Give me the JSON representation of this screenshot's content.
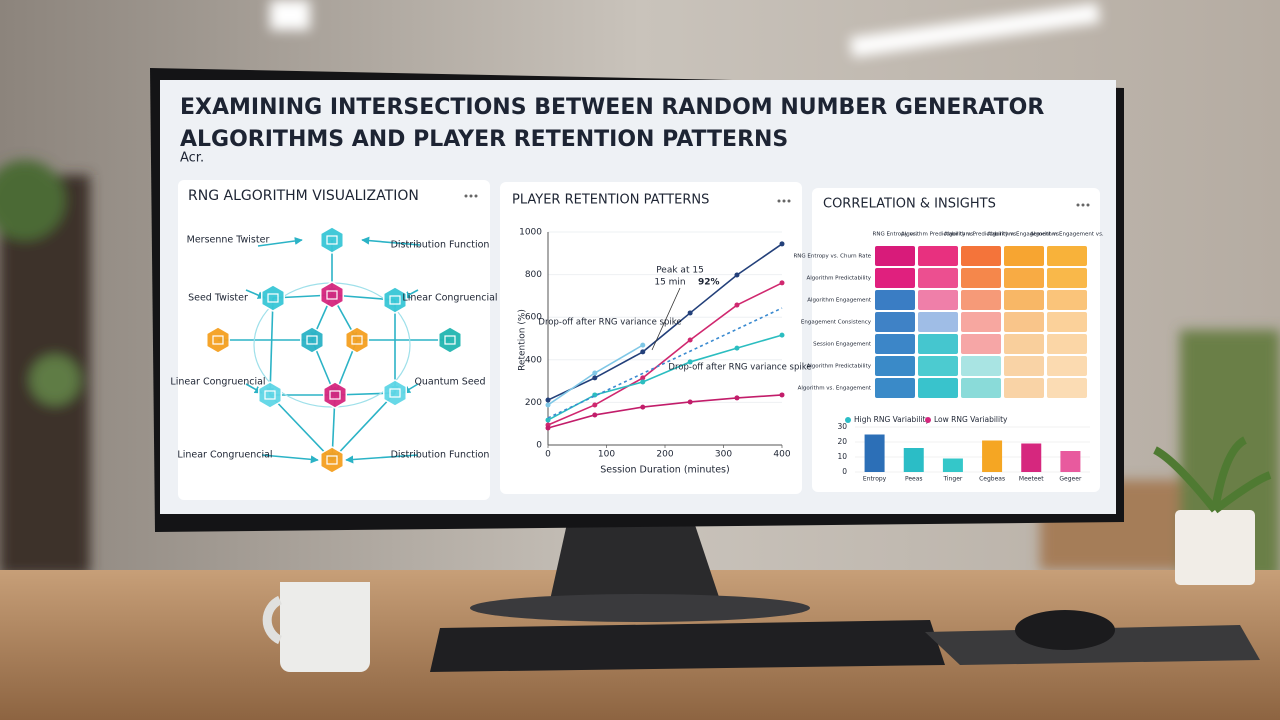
{
  "header": {
    "title_line1": "EXAMINING INTERSECTIONS BETWEEN RANDOM NUMBER GENERATOR",
    "title_line2": "ALGORITHMS AND PLAYER RETENTION PATTERNS",
    "subtitle": "Acr."
  },
  "panels": {
    "diagram_title": "RNG ALGORITHM VISUALIZATION",
    "retention_title": "PLAYER RETENTION PATTERNS",
    "insights_title": "CORRELATION & INSIGHTS"
  },
  "diagram": {
    "labels": [
      "Mersenne Twister",
      "Distribution Function",
      "Seed Twister",
      "Linear Congruencial",
      "Linear Congruencial",
      "Quantum Seed",
      "Linear Congruencial",
      "Distribution Function"
    ]
  },
  "heatmap": {
    "columns": [
      "RNG Entropy vs.",
      "Algorithm Predictability vs.",
      "Algorithm Predictability vs.",
      "Algorithm Engagement vs.",
      "Algorithm Engagement vs."
    ],
    "rows": [
      "RNG Entropy vs. Churn Rate",
      "Algorithm Predictability",
      "Algorithm Engagement",
      "Engagement Consistency",
      "Session Engagement",
      "Algorithm Predictability",
      "Algorithm vs. Engagement"
    ],
    "cell_colors": [
      [
        "#d81b7a",
        "#e8307f",
        "#f4743a",
        "#f7a531",
        "#f8b23a"
      ],
      [
        "#e0207e",
        "#ec4f90",
        "#f5874b",
        "#f8ab44",
        "#f9b84a"
      ],
      [
        "#3a7dc4",
        "#ef7fa9",
        "#f69a78",
        "#f8b766",
        "#fac47a"
      ],
      [
        "#3f82c6",
        "#9fbde6",
        "#f7a7a0",
        "#f9c58a",
        "#fbd19a"
      ],
      [
        "#3c86c8",
        "#45c6cf",
        "#f6a6a6",
        "#f9cf9c",
        "#fbd6a6"
      ],
      [
        "#3a8ac8",
        "#4ccbd0",
        "#a9e4e3",
        "#f9d3a6",
        "#fbdab0"
      ],
      [
        "#3a8ac8",
        "#39c3cc",
        "#8adbd9",
        "#f9d3a6",
        "#fbdcb4"
      ]
    ]
  },
  "chart_data": [
    {
      "type": "line",
      "xlabel": "Session Duration (minutes)",
      "ylabel": "Retention (%)",
      "xlim": [
        0,
        400
      ],
      "xticks": [
        0,
        100,
        200,
        300,
        400
      ],
      "ylim": [
        0,
        1000
      ],
      "yticks": [
        0,
        200,
        400,
        600,
        800,
        1000
      ],
      "series": [
        {
          "color": "#23407a",
          "x": [
            0,
            80,
            162,
            243,
            323,
            400
          ],
          "values": [
            211,
            315,
            437,
            620,
            798,
            944
          ]
        },
        {
          "color": "#d0286f",
          "x": [
            0,
            80,
            162,
            243,
            323,
            400
          ],
          "values": [
            94,
            188,
            315,
            493,
            657,
            761
          ]
        },
        {
          "color": "#2bbdc0",
          "x": [
            0,
            80,
            162,
            243,
            323,
            400
          ],
          "values": [
            117,
            235,
            296,
            390,
            455,
            516
          ]
        },
        {
          "color": "#c21d6a",
          "x": [
            0,
            80,
            162,
            243,
            323,
            400
          ],
          "values": [
            80,
            141,
            178,
            202,
            221,
            235
          ]
        },
        {
          "color": "#7fc7e6",
          "x": [
            0,
            80,
            162
          ],
          "values": [
            188,
            338,
            469
          ]
        },
        {
          "color": "#3a8ad0",
          "dashed": true,
          "x": [
            0,
            400
          ],
          "values": [
            127,
            643
          ]
        }
      ],
      "annotations": {
        "peak_line1": "Peak at 15",
        "peak_line2": "15 min",
        "peak_value": "92%",
        "dropoff_left": "Drop-off after RNG variance spike",
        "dropoff_right": "Drop-off after RNG variance spike"
      }
    },
    {
      "type": "bar",
      "categories": [
        "Entropy",
        "Peeas",
        "Tinger",
        "Cegbeas",
        "Meeteet",
        "Gegeer"
      ],
      "values": [
        25,
        16,
        9,
        21,
        19,
        14
      ],
      "colors": [
        "#2c6fb7",
        "#2bbdc6",
        "#34c7c9",
        "#f5a623",
        "#d6277e",
        "#e85a9e"
      ],
      "ylim": [
        0,
        30
      ],
      "yticks": [
        0,
        10,
        20,
        30
      ],
      "legend": [
        {
          "name": "High RNG Variability",
          "color": "#2bbdc6"
        },
        {
          "name": "Low RNG Variability",
          "color": "#d6277e"
        }
      ]
    }
  ]
}
